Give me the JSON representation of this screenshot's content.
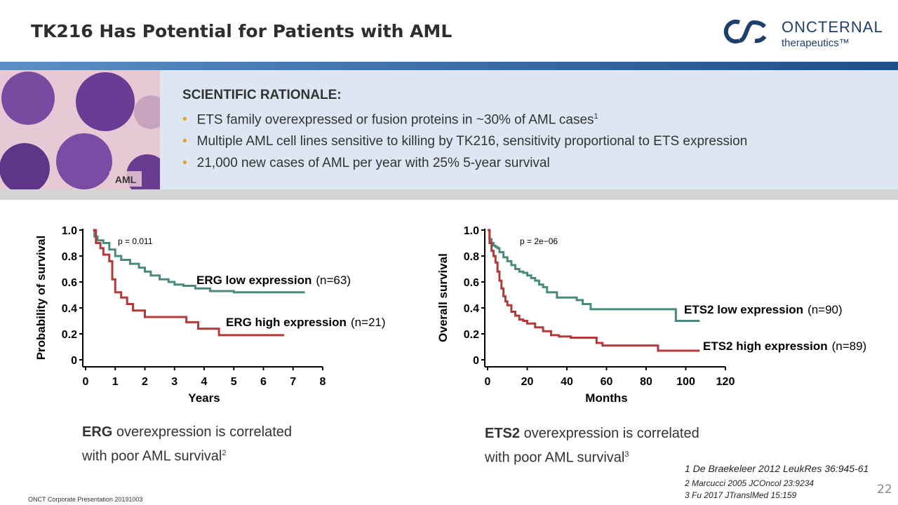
{
  "header": {
    "title": "TK216 Has Potential for Patients with AML",
    "logo_name": "ONCTERNAL",
    "logo_sub": "therapeutics™"
  },
  "image_label": "AML",
  "rationale": {
    "heading": "SCIENTIFIC RATIONALE:",
    "bullets": [
      {
        "text": "ETS family overexpressed or fusion proteins in ~30% of AML cases",
        "sup": "1"
      },
      {
        "text": "Multiple AML cell lines sensitive to killing by TK216, sensitivity proportional to ETS expression"
      },
      {
        "text": "21,000 new cases of AML per year with 25% 5-year survival"
      }
    ]
  },
  "chart_data": [
    {
      "type": "line",
      "step": true,
      "annotation": "p = 0.011",
      "x_label": "Years",
      "y_label": "Probability of survival",
      "xlim": [
        0,
        8
      ],
      "xticks": [
        0,
        1,
        2,
        3,
        4,
        5,
        6,
        7,
        8
      ],
      "ylim": [
        0,
        1
      ],
      "yticks": [
        0,
        0.2,
        0.4,
        0.6,
        0.8,
        {
          "value": 1,
          "label": "1.0"
        }
      ],
      "series": [
        {
          "name": "ERG low expression",
          "n_label": "(n=63)",
          "color": "#4a8a7c",
          "x": [
            0.25,
            0.3,
            0.4,
            0.6,
            0.8,
            1.0,
            1.2,
            1.5,
            1.8,
            2.0,
            2.2,
            2.5,
            2.8,
            3.0,
            3.3,
            3.7,
            4.2,
            5.0,
            7.4
          ],
          "values": [
            1.0,
            0.95,
            0.92,
            0.9,
            0.85,
            0.8,
            0.77,
            0.74,
            0.71,
            0.68,
            0.65,
            0.62,
            0.6,
            0.58,
            0.57,
            0.55,
            0.53,
            0.52,
            0.52
          ]
        },
        {
          "name": "ERG high expression",
          "n_label": "(n=21)",
          "color": "#b23a3a",
          "x": [
            0.25,
            0.35,
            0.5,
            0.6,
            0.8,
            0.9,
            1.0,
            1.2,
            1.4,
            1.6,
            2.0,
            3.4,
            3.8,
            4.5,
            6.7
          ],
          "values": [
            1.0,
            0.9,
            0.86,
            0.81,
            0.76,
            0.62,
            0.52,
            0.48,
            0.43,
            0.38,
            0.33,
            0.29,
            0.24,
            0.19,
            0.19
          ]
        }
      ]
    },
    {
      "type": "line",
      "step": true,
      "annotation": "p = 2e−06",
      "x_label": "Months",
      "y_label": "Overall survival",
      "xlim": [
        0,
        120
      ],
      "xticks": [
        0,
        20,
        40,
        60,
        80,
        100,
        120
      ],
      "ylim": [
        0,
        1
      ],
      "yticks": [
        0,
        0.2,
        0.4,
        0.6,
        0.8,
        {
          "value": 1,
          "label": "1.0"
        }
      ],
      "series": [
        {
          "name": "ETS2 low expression",
          "n_label": "(n=90)",
          "color": "#4a8a7c",
          "x": [
            0,
            1,
            2,
            3,
            4,
            5,
            6,
            8,
            10,
            12,
            14,
            16,
            18,
            20,
            22,
            24,
            26,
            28,
            30,
            35,
            45,
            48,
            52,
            95,
            107
          ],
          "values": [
            1.0,
            0.93,
            0.9,
            0.88,
            0.87,
            0.86,
            0.83,
            0.79,
            0.76,
            0.73,
            0.7,
            0.68,
            0.67,
            0.65,
            0.63,
            0.61,
            0.58,
            0.56,
            0.52,
            0.48,
            0.46,
            0.43,
            0.39,
            0.3,
            0.3
          ]
        },
        {
          "name": "ETS2 high expression",
          "n_label": "(n=89)",
          "color": "#b23a3a",
          "x": [
            0,
            1,
            2,
            3,
            4,
            5,
            6,
            7,
            8,
            9,
            10,
            12,
            14,
            16,
            18,
            20,
            24,
            28,
            32,
            36,
            42,
            55,
            58,
            86,
            107
          ],
          "values": [
            1.0,
            0.9,
            0.84,
            0.8,
            0.75,
            0.68,
            0.61,
            0.55,
            0.49,
            0.45,
            0.42,
            0.37,
            0.34,
            0.31,
            0.3,
            0.28,
            0.25,
            0.22,
            0.19,
            0.18,
            0.17,
            0.13,
            0.11,
            0.07,
            0.07
          ]
        }
      ]
    }
  ],
  "captions": [
    {
      "bold": "ERG",
      "line1": "overexpression is correlated",
      "line2": "with poor AML survival",
      "sup": "2"
    },
    {
      "bold": "ETS2",
      "line1": "overexpression is correlated",
      "line2": "with poor AML survival",
      "sup": "3"
    }
  ],
  "references": [
    "1 De Braekeleer 2012 LeukRes 36:945-61",
    "2 Marcucci 2005  JCOncol 23:9234",
    "3 Fu 2017  JTranslMed 15:159"
  ],
  "page_number": "22",
  "footer": "ONCT Corporate Presentation 20191003"
}
